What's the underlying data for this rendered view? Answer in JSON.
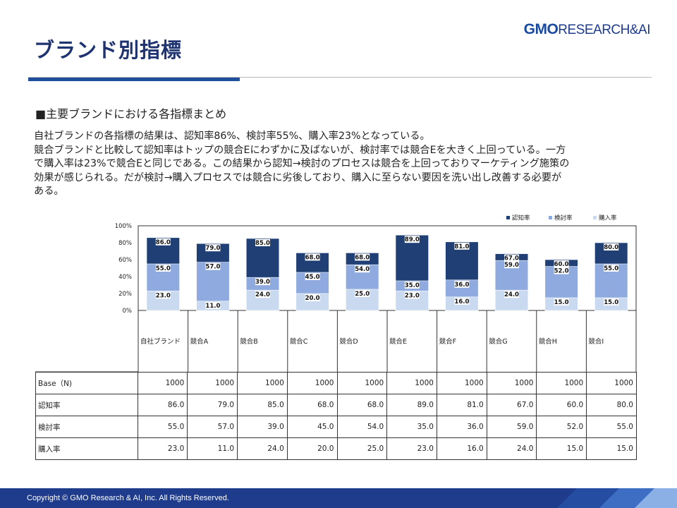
{
  "header": {
    "title": "ブランド別指標",
    "logo_brand": "GMO",
    "logo_rest": "RESEARCH&AI"
  },
  "subheading": "■主要ブランドにおける各指標まとめ",
  "body_lines": [
    "自社ブランドの各指標の結果は、認知率86%、検討率55%、購入率23%となっている。",
    "競合ブランドと比較して認知率はトップの競合Eにわずかに及ばないが、検討率では競合Eを大きく上回っている。一方",
    "で購入率は23%で競合Eと同じである。この結果から認知→検討のプロセスは競合を上回っておりマーケティング施策の",
    "効果が感じられる。だが検討→購入プロセスでは競合に劣後しており、購入に至らない要因を洗い出し改善する必要が",
    "ある。"
  ],
  "chart_data": {
    "type": "bar",
    "layout": "overlapping",
    "categories": [
      "自社ブランド",
      "競合A",
      "競合B",
      "競合C",
      "競合D",
      "競合E",
      "競合F",
      "競合G",
      "競合H",
      "競合I"
    ],
    "series": [
      {
        "name": "認知率",
        "color": "#1f3f75",
        "values": [
          86.0,
          79.0,
          85.0,
          68.0,
          68.0,
          89.0,
          81.0,
          67.0,
          60.0,
          80.0
        ]
      },
      {
        "name": "検討率",
        "color": "#8eaade",
        "values": [
          55.0,
          57.0,
          39.0,
          45.0,
          54.0,
          35.0,
          36.0,
          59.0,
          52.0,
          55.0
        ]
      },
      {
        "name": "購入率",
        "color": "#c9daf0",
        "values": [
          23.0,
          11.0,
          24.0,
          20.0,
          25.0,
          23.0,
          16.0,
          24.0,
          15.0,
          15.0
        ]
      }
    ],
    "y_ticks": [
      "0%",
      "20%",
      "40%",
      "60%",
      "80%",
      "100%"
    ],
    "ylim": [
      0,
      100
    ],
    "legend_position": "top-right",
    "grid": false
  },
  "table": {
    "rows": [
      {
        "label": "Base（N)",
        "values": [
          "1000",
          "1000",
          "1000",
          "1000",
          "1000",
          "1000",
          "1000",
          "1000",
          "1000",
          "1000"
        ]
      },
      {
        "label": "認知率",
        "values": [
          "86.0",
          "79.0",
          "85.0",
          "68.0",
          "68.0",
          "89.0",
          "81.0",
          "67.0",
          "60.0",
          "80.0"
        ]
      },
      {
        "label": "検討率",
        "values": [
          "55.0",
          "57.0",
          "39.0",
          "45.0",
          "54.0",
          "35.0",
          "36.0",
          "59.0",
          "52.0",
          "55.0"
        ]
      },
      {
        "label": "購入率",
        "values": [
          "23.0",
          "11.0",
          "24.0",
          "20.0",
          "25.0",
          "23.0",
          "16.0",
          "24.0",
          "15.0",
          "15.0"
        ]
      }
    ]
  },
  "footer": {
    "copyright": "Copyright © GMO Research & AI, Inc. All Rights Reserved."
  }
}
